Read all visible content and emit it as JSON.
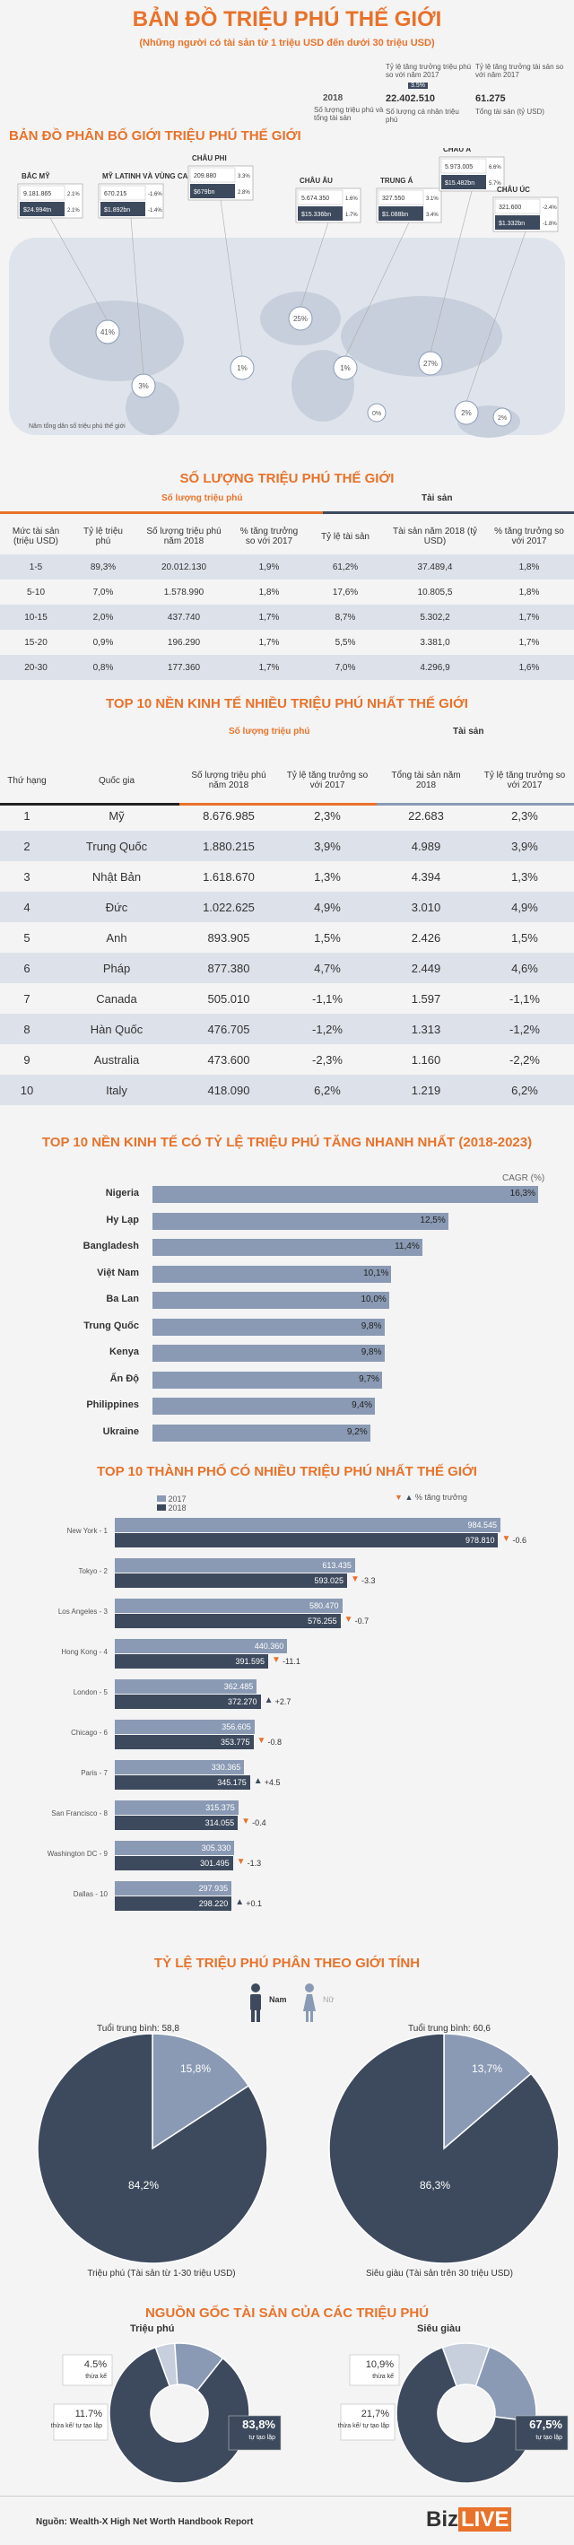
{
  "header": {
    "title": "BẢN ĐỒ TRIỆU PHÚ THẾ GIỚI",
    "subtitle": "(Những người có tài sản từ 1 triệu USD đến dưới 30 triệu USD)",
    "legend_2018": "2018",
    "legend_count_label": "Số lượng triệu phú và tổng tài sản",
    "legend_growth_label1": "Tỷ lệ tăng trưởng triệu phú so với năm 2017",
    "legend_growth_label2": "Tỷ lệ tăng trưởng tài sản so với năm 2017",
    "legend_count_value": "22.402.510",
    "legend_asset_value": "61.275",
    "legend_count_note": "Số lượng cá nhân triệu phú",
    "legend_asset_note": "Tổng tài sản (tỷ USD)",
    "legend_badge": "3.5%"
  },
  "map": {
    "title": "BẢN ĐỒ PHÂN BỐ GIỚI TRIỆU PHÚ THẾ GIỚI",
    "note": "Năm tổng dân số triệu phú thế giới",
    "regions": [
      {
        "name": "BẮC MỸ",
        "count": "9.181.865",
        "asset": "$24.994tn",
        "g1": "2.1%",
        "g2": "2.1%",
        "share": "41%"
      },
      {
        "name": "MỸ LATINH VÀ VÙNG CA RI BÊ",
        "count": "670.215",
        "asset": "$1.892bn",
        "g1": "-1.6%",
        "g2": "-1.4%",
        "share": "3%"
      },
      {
        "name": "CHÂU PHI",
        "count": "209.880",
        "asset": "$679bn",
        "g1": "3.3%",
        "g2": "2.8%",
        "share": "1%"
      },
      {
        "name": "CHÂU ÂU",
        "count": "5.674.350",
        "asset": "$15.336bn",
        "g1": "1.6%",
        "g2": "1.7%",
        "share": "25%"
      },
      {
        "name": "TRUNG Á",
        "count": "327.550",
        "asset": "$1.088bn",
        "g1": "3.1%",
        "g2": "3.4%",
        "share": "1%"
      },
      {
        "name": "CHÂU Á",
        "count": "5.973.005",
        "asset": "$15.482bn",
        "g1": "6.6%",
        "g2": "5.7%",
        "share": "27%"
      },
      {
        "name": "CHÂU ÚC",
        "count": "321.600",
        "asset": "$1.332bn",
        "g1": "-2.4%",
        "g2": "-1.8%",
        "share": "2%"
      }
    ],
    "extra_shares": [
      "2%",
      "0%"
    ]
  },
  "count_table": {
    "title": "SỐ LƯỢNG TRIỆU PHÚ THẾ GIỚI",
    "group_count": "Số lượng triệu phú",
    "group_asset": "Tài sản",
    "headers": [
      "Mức tài sản (triệu USD)",
      "Tỷ lệ triệu phú",
      "Số lượng triệu phú năm 2018",
      "% tăng trưởng so với 2017",
      "Tỷ lệ tài sản",
      "Tài sản năm 2018 (tỷ USD)",
      "% tăng trưởng so với 2017"
    ],
    "rows": [
      [
        "1-5",
        "89,3%",
        "20.012.130",
        "1,9%",
        "61,2%",
        "37.489,4",
        "1,8%"
      ],
      [
        "5-10",
        "7,0%",
        "1.578.990",
        "1,8%",
        "17,6%",
        "10.805,5",
        "1,8%"
      ],
      [
        "10-15",
        "2,0%",
        "437.740",
        "1,7%",
        "8,7%",
        "5.302,2",
        "1,7%"
      ],
      [
        "15-20",
        "0,9%",
        "196.290",
        "1,7%",
        "5,5%",
        "3.381,0",
        "1,7%"
      ],
      [
        "20-30",
        "0,8%",
        "177.360",
        "1,7%",
        "7,0%",
        "4.296,9",
        "1,6%"
      ]
    ]
  },
  "top10_table": {
    "title": "TOP 10 NỀN KINH TẾ NHIỀU TRIỆU PHÚ NHẤT THẾ GIỚI",
    "group_count": "Số lượng triệu phú",
    "group_asset": "Tài sản",
    "headers": [
      "Thứ hạng",
      "Quốc gia",
      "Số lượng triệu phú năm 2018",
      "Tỷ lệ tăng trưởng so với 2017",
      "Tổng tài sản năm 2018",
      "Tỷ lệ tăng trưởng so với 2017"
    ],
    "rows": [
      [
        "1",
        "Mỹ",
        "8.676.985",
        "2,3%",
        "22.683",
        "2,3%"
      ],
      [
        "2",
        "Trung Quốc",
        "1.880.215",
        "3,9%",
        "4.989",
        "3,9%"
      ],
      [
        "3",
        "Nhật Bản",
        "1.618.670",
        "1,3%",
        "4.394",
        "1,3%"
      ],
      [
        "4",
        "Đức",
        "1.022.625",
        "4,9%",
        "3.010",
        "4,9%"
      ],
      [
        "5",
        "Anh",
        "893.905",
        "1,5%",
        "2.426",
        "1,5%"
      ],
      [
        "6",
        "Pháp",
        "877.380",
        "4,7%",
        "2.449",
        "4,6%"
      ],
      [
        "7",
        "Canada",
        "505.010",
        "-1,1%",
        "1.597",
        "-1,1%"
      ],
      [
        "8",
        "Hàn Quốc",
        "476.705",
        "-1,2%",
        "1.313",
        "-1,2%"
      ],
      [
        "9",
        "Australia",
        "473.600",
        "-2,3%",
        "1.160",
        "-2,2%"
      ],
      [
        "10",
        "Italy",
        "418.090",
        "6,2%",
        "1.219",
        "6,2%"
      ]
    ]
  },
  "chart_data": [
    {
      "type": "bar",
      "title": "TOP 10 NỀN KINH TẾ CÓ TỶ LỆ TRIỆU PHÚ TĂNG NHANH NHẤT (2018-2023)",
      "ylabel": "CAGR (%)",
      "categories": [
        "Nigeria",
        "Hy Lạp",
        "Bangladesh",
        "Việt Nam",
        "Ba Lan",
        "Trung Quốc",
        "Kenya",
        "Ấn Độ",
        "Philippines",
        "Ukraine"
      ],
      "values": [
        16.3,
        12.5,
        11.4,
        10.1,
        10.0,
        9.8,
        9.8,
        9.7,
        9.4,
        9.2
      ],
      "labels": [
        "16,3%",
        "12,5%",
        "11,4%",
        "10,1%",
        "10,0%",
        "9,8%",
        "9,8%",
        "9,7%",
        "9,4%",
        "9,2%"
      ],
      "xlim": [
        0,
        16.3
      ]
    },
    {
      "type": "bar",
      "title": "TOP 10 THÀNH PHỐ CÓ NHIỀU TRIỆU PHÚ NHẤT THẾ GIỚI",
      "legend": "% tăng trưởng",
      "categories": [
        "New York - 1",
        "Tokyo - 2",
        "Los Angeles - 3",
        "Hong Kong - 4",
        "London - 5",
        "Chicago - 6",
        "Paris - 7",
        "San Francisco - 8",
        "Washington DC - 9",
        "Dallas - 10"
      ],
      "series": [
        {
          "name": "2017",
          "values": [
            984545,
            613435,
            580470,
            440360,
            362485,
            356605,
            330365,
            315375,
            305330,
            297935
          ],
          "labels": [
            "984.545",
            "613.435",
            "580.470",
            "440.360",
            "362.485",
            "356.605",
            "330.365",
            "315.375",
            "305.330",
            "297.935"
          ]
        },
        {
          "name": "2018",
          "values": [
            978810,
            593025,
            576255,
            391595,
            372270,
            353775,
            345175,
            314055,
            301495,
            298220
          ],
          "labels": [
            "978.810",
            "593.025",
            "576.255",
            "391.595",
            "372.270",
            "353.775",
            "345.175",
            "314.055",
            "301.495",
            "298.220"
          ]
        }
      ],
      "growth": [
        "-0.6",
        "-3.3",
        "-0.7",
        "-11.1",
        "+2.7",
        "-0.8",
        "+4.5",
        "-0.4",
        "-1.3",
        "+0.1"
      ],
      "xlim": [
        0,
        984545
      ]
    },
    {
      "type": "pie",
      "title": "Triệu phú (Tài sản từ 1-30 triệu USD)",
      "categories": [
        "Nữ",
        "Nam"
      ],
      "values": [
        15.8,
        84.2
      ],
      "labels": [
        "15,8%",
        "84,2%"
      ]
    },
    {
      "type": "pie",
      "title": "Siêu giàu (Tài sản trên 30 triệu USD)",
      "categories": [
        "Nữ",
        "Nam"
      ],
      "values": [
        13.7,
        86.3
      ],
      "labels": [
        "13,7%",
        "86,3%"
      ]
    },
    {
      "type": "pie",
      "title": "Triệu phú",
      "categories": [
        "thừa kế",
        "thừa kế/ tự tạo lập",
        "tự tạo lập"
      ],
      "values": [
        4.5,
        11.7,
        83.8
      ],
      "labels": [
        "4.5%",
        "11.7%",
        "83,8%"
      ]
    },
    {
      "type": "pie",
      "title": "Siêu giàu",
      "categories": [
        "thừa kế",
        "thừa kế/ tự tạo lập",
        "tự tạo lập"
      ],
      "values": [
        10.9,
        21.7,
        67.5
      ],
      "labels": [
        "10,9%",
        "21,7%",
        "67,5%"
      ]
    }
  ],
  "gender": {
    "title": "TỶ LỆ TRIỆU PHÚ PHÂN THEO GIỚI TÍNH",
    "male": "Nam",
    "female": "Nữ",
    "age_left": "Tuổi trung bình: 58,8",
    "age_right": "Tuổi trung bình: 60,6"
  },
  "origin": {
    "title": "NGUỒN GỐC TÀI SẢN CỦA CÁC TRIỆU PHÚ"
  },
  "footer": {
    "source": "Nguồn: Wealth-X High Net Worth Handbook Report",
    "brand_left": "Biz",
    "brand_right": "LIVE"
  },
  "colors": {
    "orange": "#e8722a",
    "navy": "#3d4a5e",
    "steel": "#8a9ab4",
    "light": "#dde1ea"
  }
}
